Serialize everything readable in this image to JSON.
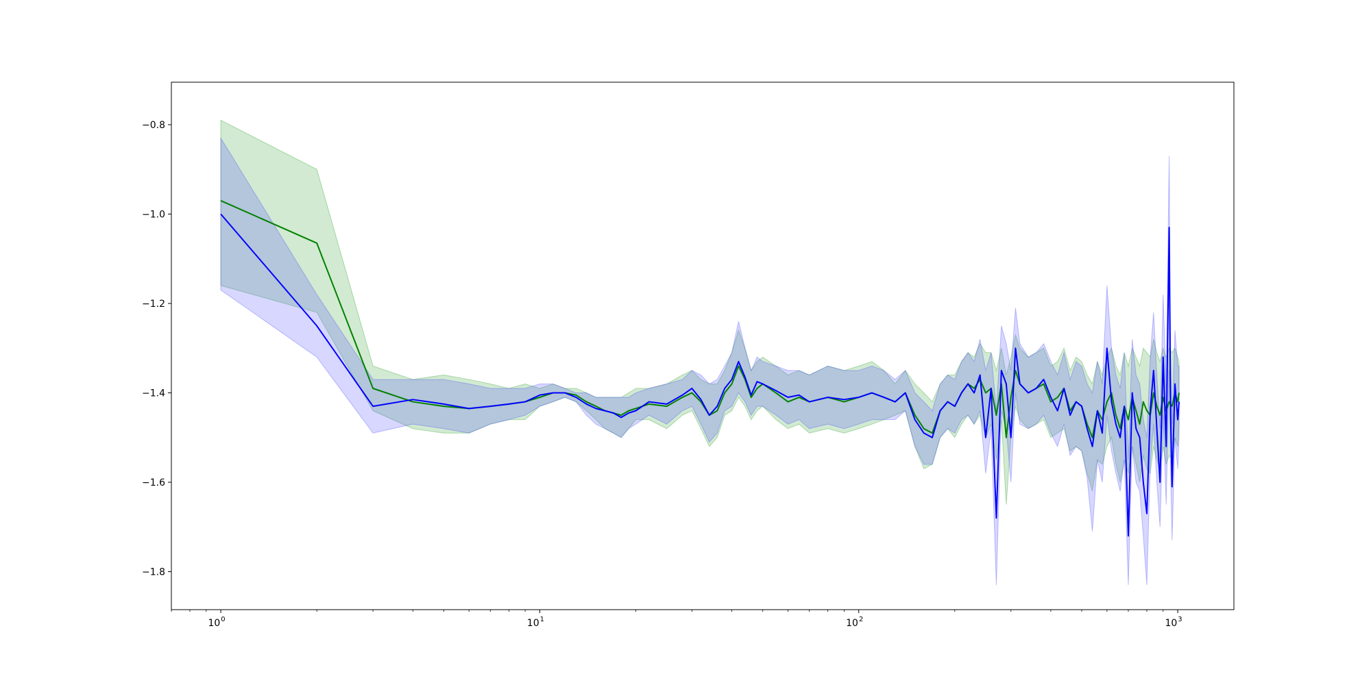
{
  "chart_data": {
    "type": "line",
    "xscale": "log",
    "xlim": [
      0.7,
      1500
    ],
    "ylim": [
      -1.885,
      -0.705
    ],
    "grid": false,
    "legend": "none",
    "title": "",
    "xlabel": "",
    "ylabel": "",
    "x_ticks": [
      {
        "value": 1,
        "base": "10",
        "exp": "0"
      },
      {
        "value": 10,
        "base": "10",
        "exp": "1"
      },
      {
        "value": 100,
        "base": "10",
        "exp": "2"
      },
      {
        "value": 1000,
        "base": "10",
        "exp": "3"
      }
    ],
    "y_ticks": [
      {
        "value": -0.8,
        "label": "−0.8"
      },
      {
        "value": -1.0,
        "label": "−1.0"
      },
      {
        "value": -1.2,
        "label": "−1.2"
      },
      {
        "value": -1.4,
        "label": "−1.4"
      },
      {
        "value": -1.6,
        "label": "−1.6"
      },
      {
        "value": -1.8,
        "label": "−1.8"
      }
    ],
    "series": [
      {
        "color": "#008000",
        "band_color": "#2ca02c",
        "x": [
          1,
          2,
          3,
          4,
          5,
          6,
          7,
          8,
          9,
          10,
          11,
          12,
          13,
          14,
          15,
          16,
          17,
          18,
          19,
          20,
          22,
          25,
          28,
          30,
          32,
          34,
          36,
          38,
          40,
          42,
          44,
          46,
          48,
          50,
          55,
          60,
          65,
          70,
          80,
          90,
          100,
          110,
          120,
          130,
          140,
          150,
          160,
          170,
          180,
          190,
          200,
          210,
          220,
          230,
          240,
          250,
          260,
          270,
          280,
          290,
          300,
          310,
          320,
          340,
          360,
          380,
          400,
          420,
          440,
          460,
          480,
          500,
          520,
          540,
          560,
          580,
          600,
          620,
          640,
          660,
          680,
          700,
          720,
          740,
          760,
          780,
          800,
          820,
          840,
          860,
          880,
          900,
          920,
          940,
          960,
          980,
          1000,
          1010
        ],
        "y": [
          -0.97,
          -1.065,
          -1.39,
          -1.42,
          -1.43,
          -1.435,
          -1.43,
          -1.425,
          -1.42,
          -1.41,
          -1.4,
          -1.4,
          -1.405,
          -1.42,
          -1.43,
          -1.44,
          -1.445,
          -1.45,
          -1.44,
          -1.435,
          -1.425,
          -1.43,
          -1.41,
          -1.4,
          -1.42,
          -1.45,
          -1.44,
          -1.4,
          -1.38,
          -1.34,
          -1.37,
          -1.41,
          -1.39,
          -1.38,
          -1.4,
          -1.42,
          -1.41,
          -1.42,
          -1.41,
          -1.42,
          -1.41,
          -1.4,
          -1.41,
          -1.42,
          -1.4,
          -1.45,
          -1.48,
          -1.49,
          -1.44,
          -1.42,
          -1.43,
          -1.4,
          -1.38,
          -1.39,
          -1.37,
          -1.4,
          -1.39,
          -1.45,
          -1.38,
          -1.5,
          -1.41,
          -1.35,
          -1.38,
          -1.4,
          -1.39,
          -1.38,
          -1.42,
          -1.41,
          -1.39,
          -1.44,
          -1.42,
          -1.43,
          -1.47,
          -1.5,
          -1.44,
          -1.46,
          -1.42,
          -1.4,
          -1.45,
          -1.48,
          -1.43,
          -1.46,
          -1.41,
          -1.44,
          -1.47,
          -1.42,
          -1.44,
          -1.45,
          -1.4,
          -1.43,
          -1.45,
          -1.41,
          -1.44,
          -1.42,
          -1.43,
          -1.4,
          -1.42,
          -1.4
        ],
        "lower": [
          -1.16,
          -1.22,
          -1.44,
          -1.48,
          -1.49,
          -1.49,
          -1.47,
          -1.46,
          -1.46,
          -1.43,
          -1.42,
          -1.41,
          -1.42,
          -1.44,
          -1.46,
          -1.48,
          -1.49,
          -1.5,
          -1.48,
          -1.46,
          -1.46,
          -1.48,
          -1.45,
          -1.44,
          -1.48,
          -1.52,
          -1.5,
          -1.45,
          -1.44,
          -1.41,
          -1.43,
          -1.46,
          -1.44,
          -1.43,
          -1.46,
          -1.48,
          -1.47,
          -1.49,
          -1.48,
          -1.49,
          -1.48,
          -1.47,
          -1.46,
          -1.45,
          -1.44,
          -1.52,
          -1.57,
          -1.56,
          -1.5,
          -1.48,
          -1.5,
          -1.47,
          -1.45,
          -1.47,
          -1.45,
          -1.5,
          -1.47,
          -1.55,
          -1.46,
          -1.65,
          -1.5,
          -1.43,
          -1.46,
          -1.48,
          -1.47,
          -1.46,
          -1.5,
          -1.49,
          -1.48,
          -1.53,
          -1.52,
          -1.53,
          -1.58,
          -1.62,
          -1.55,
          -1.56,
          -1.52,
          -1.5,
          -1.56,
          -1.6,
          -1.55,
          -1.58,
          -1.52,
          -1.56,
          -1.6,
          -1.54,
          -1.57,
          -1.58,
          -1.52,
          -1.55,
          -1.57,
          -1.52,
          -1.56,
          -1.54,
          -1.55,
          -1.5,
          -1.52,
          -1.47
        ],
        "upper": [
          -0.79,
          -0.9,
          -1.34,
          -1.37,
          -1.36,
          -1.37,
          -1.38,
          -1.39,
          -1.38,
          -1.39,
          -1.38,
          -1.39,
          -1.39,
          -1.4,
          -1.41,
          -1.41,
          -1.41,
          -1.41,
          -1.4,
          -1.39,
          -1.39,
          -1.38,
          -1.36,
          -1.35,
          -1.37,
          -1.38,
          -1.38,
          -1.35,
          -1.31,
          -1.26,
          -1.3,
          -1.35,
          -1.33,
          -1.32,
          -1.34,
          -1.36,
          -1.35,
          -1.36,
          -1.34,
          -1.35,
          -1.34,
          -1.33,
          -1.35,
          -1.38,
          -1.35,
          -1.38,
          -1.4,
          -1.42,
          -1.38,
          -1.36,
          -1.36,
          -1.33,
          -1.31,
          -1.32,
          -1.29,
          -1.31,
          -1.31,
          -1.35,
          -1.3,
          -1.36,
          -1.32,
          -1.27,
          -1.3,
          -1.32,
          -1.31,
          -1.3,
          -1.34,
          -1.33,
          -1.3,
          -1.35,
          -1.32,
          -1.33,
          -1.36,
          -1.38,
          -1.33,
          -1.36,
          -1.32,
          -1.3,
          -1.34,
          -1.36,
          -1.31,
          -1.34,
          -1.3,
          -1.32,
          -1.34,
          -1.3,
          -1.31,
          -1.32,
          -1.28,
          -1.31,
          -1.33,
          -1.3,
          -1.32,
          -1.3,
          -1.31,
          -1.3,
          -1.32,
          -1.33
        ]
      },
      {
        "color": "#0000ff",
        "band_color": "#4b4bff",
        "x": [
          1,
          2,
          3,
          4,
          5,
          6,
          7,
          8,
          9,
          10,
          11,
          12,
          13,
          14,
          15,
          16,
          17,
          18,
          19,
          20,
          22,
          25,
          28,
          30,
          32,
          34,
          36,
          38,
          40,
          42,
          44,
          46,
          48,
          50,
          55,
          60,
          65,
          70,
          80,
          90,
          100,
          110,
          120,
          130,
          140,
          150,
          160,
          170,
          180,
          190,
          200,
          210,
          220,
          230,
          240,
          250,
          260,
          270,
          280,
          290,
          300,
          310,
          320,
          340,
          360,
          380,
          400,
          420,
          440,
          460,
          480,
          500,
          520,
          540,
          560,
          580,
          600,
          620,
          640,
          660,
          680,
          700,
          720,
          740,
          760,
          780,
          800,
          820,
          840,
          860,
          880,
          900,
          920,
          940,
          950,
          960,
          980,
          1000,
          1010
        ],
        "y": [
          -1.0,
          -1.25,
          -1.43,
          -1.415,
          -1.425,
          -1.435,
          -1.43,
          -1.425,
          -1.42,
          -1.405,
          -1.4,
          -1.4,
          -1.41,
          -1.425,
          -1.435,
          -1.44,
          -1.445,
          -1.455,
          -1.445,
          -1.44,
          -1.42,
          -1.425,
          -1.405,
          -1.39,
          -1.415,
          -1.45,
          -1.43,
          -1.39,
          -1.37,
          -1.33,
          -1.365,
          -1.405,
          -1.375,
          -1.38,
          -1.395,
          -1.41,
          -1.405,
          -1.42,
          -1.41,
          -1.415,
          -1.41,
          -1.4,
          -1.41,
          -1.42,
          -1.4,
          -1.46,
          -1.49,
          -1.5,
          -1.44,
          -1.42,
          -1.43,
          -1.4,
          -1.38,
          -1.4,
          -1.36,
          -1.5,
          -1.39,
          -1.68,
          -1.35,
          -1.38,
          -1.5,
          -1.3,
          -1.38,
          -1.4,
          -1.39,
          -1.37,
          -1.41,
          -1.44,
          -1.39,
          -1.45,
          -1.42,
          -1.43,
          -1.48,
          -1.52,
          -1.44,
          -1.49,
          -1.3,
          -1.42,
          -1.47,
          -1.5,
          -1.43,
          -1.72,
          -1.4,
          -1.48,
          -1.5,
          -1.6,
          -1.67,
          -1.44,
          -1.35,
          -1.48,
          -1.6,
          -1.32,
          -1.52,
          -1.03,
          -1.45,
          -1.61,
          -1.38,
          -1.46,
          -1.42
        ],
        "lower": [
          -1.17,
          -1.32,
          -1.49,
          -1.47,
          -1.48,
          -1.49,
          -1.47,
          -1.46,
          -1.45,
          -1.43,
          -1.42,
          -1.41,
          -1.42,
          -1.45,
          -1.47,
          -1.48,
          -1.49,
          -1.5,
          -1.48,
          -1.47,
          -1.45,
          -1.47,
          -1.44,
          -1.43,
          -1.47,
          -1.51,
          -1.49,
          -1.44,
          -1.43,
          -1.4,
          -1.42,
          -1.45,
          -1.43,
          -1.43,
          -1.45,
          -1.47,
          -1.46,
          -1.48,
          -1.47,
          -1.48,
          -1.47,
          -1.46,
          -1.46,
          -1.46,
          -1.44,
          -1.52,
          -1.56,
          -1.56,
          -1.5,
          -1.48,
          -1.49,
          -1.46,
          -1.45,
          -1.47,
          -1.44,
          -1.58,
          -1.48,
          -1.83,
          -1.44,
          -1.48,
          -1.6,
          -1.4,
          -1.47,
          -1.48,
          -1.47,
          -1.45,
          -1.49,
          -1.52,
          -1.47,
          -1.54,
          -1.52,
          -1.53,
          -1.59,
          -1.71,
          -1.55,
          -1.6,
          -1.45,
          -1.53,
          -1.58,
          -1.62,
          -1.55,
          -1.83,
          -1.52,
          -1.6,
          -1.62,
          -1.72,
          -1.83,
          -1.56,
          -1.47,
          -1.6,
          -1.7,
          -1.45,
          -1.65,
          -1.35,
          -1.57,
          -1.73,
          -1.5,
          -1.57,
          -1.5
        ],
        "upper": [
          -0.83,
          -1.18,
          -1.37,
          -1.37,
          -1.37,
          -1.38,
          -1.39,
          -1.39,
          -1.39,
          -1.38,
          -1.38,
          -1.39,
          -1.4,
          -1.4,
          -1.41,
          -1.41,
          -1.41,
          -1.41,
          -1.41,
          -1.4,
          -1.39,
          -1.38,
          -1.37,
          -1.35,
          -1.36,
          -1.38,
          -1.37,
          -1.34,
          -1.31,
          -1.24,
          -1.3,
          -1.35,
          -1.32,
          -1.33,
          -1.34,
          -1.35,
          -1.35,
          -1.36,
          -1.34,
          -1.35,
          -1.35,
          -1.34,
          -1.35,
          -1.37,
          -1.35,
          -1.4,
          -1.42,
          -1.44,
          -1.38,
          -1.36,
          -1.37,
          -1.33,
          -1.31,
          -1.33,
          -1.28,
          -1.35,
          -1.31,
          -1.44,
          -1.25,
          -1.29,
          -1.35,
          -1.21,
          -1.29,
          -1.32,
          -1.31,
          -1.29,
          -1.33,
          -1.36,
          -1.31,
          -1.37,
          -1.33,
          -1.34,
          -1.38,
          -1.4,
          -1.33,
          -1.38,
          -1.16,
          -1.3,
          -1.36,
          -1.39,
          -1.31,
          -1.55,
          -1.28,
          -1.36,
          -1.38,
          -1.46,
          -1.5,
          -1.32,
          -1.22,
          -1.36,
          -1.48,
          -1.18,
          -1.39,
          -0.87,
          -1.33,
          -1.47,
          -1.26,
          -1.34,
          -1.34
        ]
      }
    ]
  }
}
